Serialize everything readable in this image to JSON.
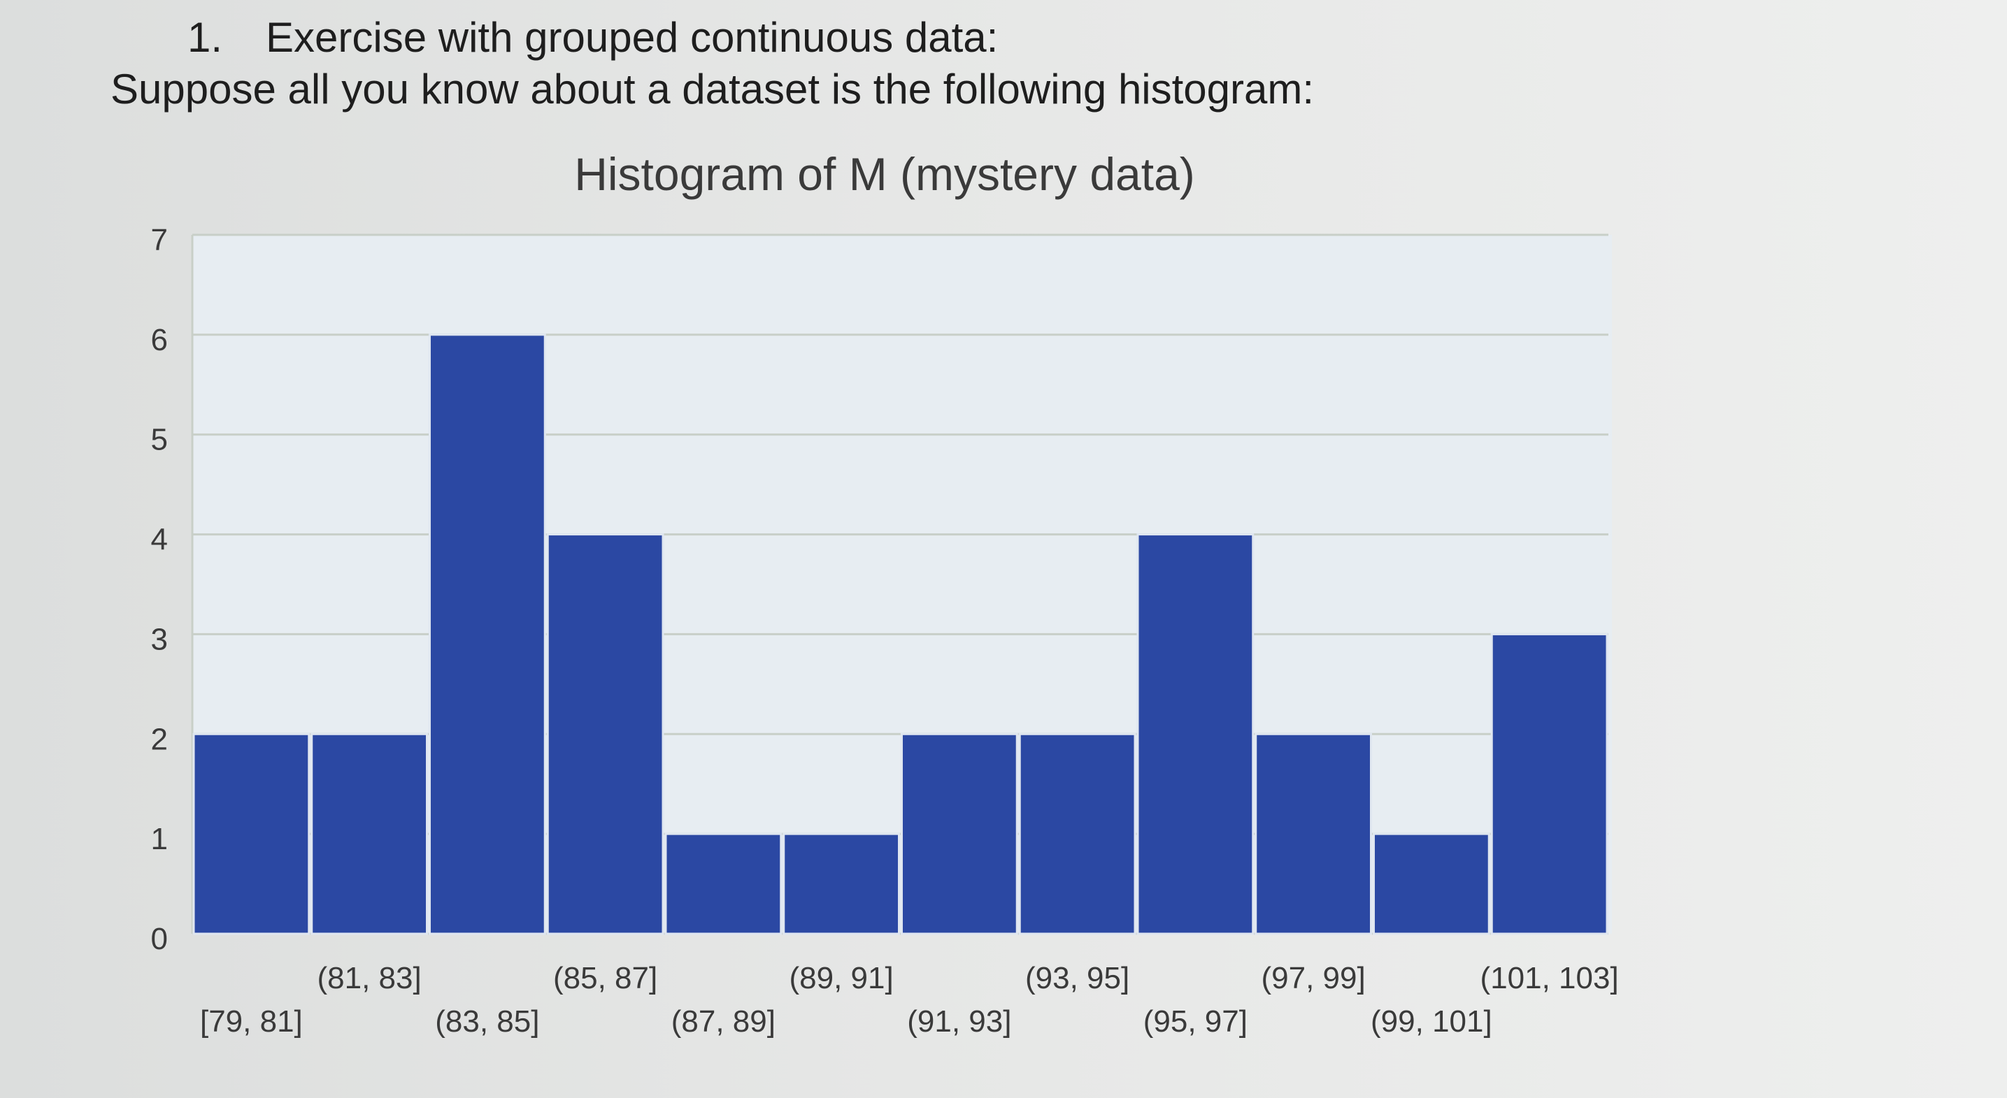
{
  "exercise": {
    "number": "1.",
    "heading": "Exercise with grouped continuous data:",
    "intro": "Suppose all you know about a dataset is the following histogram:"
  },
  "chart_data": {
    "type": "bar",
    "title": "Histogram of M (mystery data)",
    "xlabel": "",
    "ylabel": "",
    "categories": [
      "[79, 81]",
      "(81, 83]",
      "(83, 85]",
      "(85, 87]",
      "(87, 89]",
      "(89, 91]",
      "(91, 93]",
      "(93, 95]",
      "(95, 97]",
      "(97, 99]",
      "(99, 101]",
      "(101, 103]"
    ],
    "values": [
      2,
      2,
      6,
      4,
      1,
      1,
      2,
      2,
      4,
      2,
      1,
      3
    ],
    "ylim": [
      0,
      7
    ],
    "yticks": [
      0,
      1,
      2,
      3,
      4,
      5,
      6,
      7
    ],
    "grid": true,
    "legend": "none",
    "colors": {
      "bar": "#2b48a3",
      "bar_edge": "#dfe6f0",
      "grid": "#c8cfc8",
      "text": "#3a3a3a"
    }
  }
}
